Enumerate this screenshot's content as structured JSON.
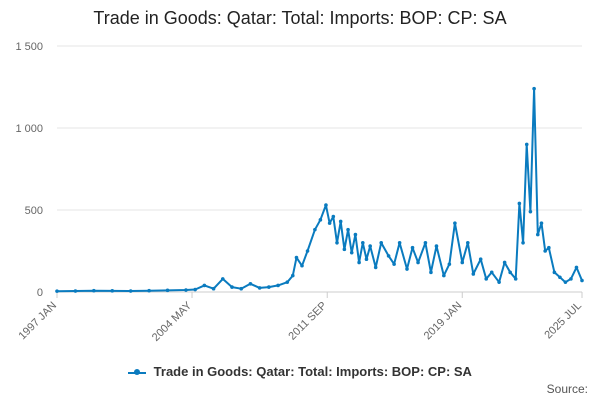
{
  "chart_data": {
    "type": "line",
    "title": "Trade in Goods: Qatar: Total: Imports: BOP: CP: SA",
    "xlabel": "",
    "ylabel": "",
    "ylim": [
      0,
      1500
    ],
    "y_ticks": [
      0,
      500,
      1000,
      1500
    ],
    "y_tick_labels": [
      "0",
      "500",
      "1 000",
      "1 500"
    ],
    "x_tick_labels": [
      "1997 JAN",
      "2004 MAY",
      "2011 SEP",
      "2019 JAN",
      "2025 JUL"
    ],
    "x_tick_positions": [
      1997.0,
      2004.33,
      2011.67,
      2019.0,
      2025.5
    ],
    "xlim": [
      1997.0,
      2025.5
    ],
    "legend_position": "bottom",
    "grid": true,
    "color": "#0a7bbf",
    "series": [
      {
        "name": "Trade in Goods: Qatar: Total: Imports: BOP: CP: SA",
        "x": [
          1997.0,
          1998.0,
          1999.0,
          2000.0,
          2001.0,
          2002.0,
          2003.0,
          2004.0,
          2004.5,
          2005.0,
          2005.5,
          2006.0,
          2006.5,
          2007.0,
          2007.5,
          2008.0,
          2008.5,
          2009.0,
          2009.5,
          2009.8,
          2010.0,
          2010.3,
          2010.6,
          2011.0,
          2011.3,
          2011.6,
          2011.8,
          2012.0,
          2012.2,
          2012.4,
          2012.6,
          2012.8,
          2013.0,
          2013.2,
          2013.4,
          2013.6,
          2013.8,
          2014.0,
          2014.3,
          2014.6,
          2015.0,
          2015.3,
          2015.6,
          2016.0,
          2016.3,
          2016.6,
          2017.0,
          2017.3,
          2017.6,
          2018.0,
          2018.3,
          2018.6,
          2019.0,
          2019.3,
          2019.6,
          2020.0,
          2020.3,
          2020.6,
          2021.0,
          2021.3,
          2021.6,
          2021.9,
          2022.1,
          2022.3,
          2022.5,
          2022.7,
          2022.9,
          2023.1,
          2023.3,
          2023.5,
          2023.7,
          2024.0,
          2024.3,
          2024.6,
          2024.9,
          2025.2,
          2025.5
        ],
        "values": [
          5,
          6,
          8,
          7,
          6,
          8,
          10,
          12,
          15,
          40,
          20,
          80,
          30,
          20,
          50,
          25,
          30,
          40,
          60,
          100,
          210,
          160,
          250,
          380,
          440,
          530,
          420,
          460,
          300,
          430,
          260,
          380,
          240,
          350,
          180,
          300,
          200,
          280,
          150,
          300,
          220,
          170,
          300,
          140,
          270,
          180,
          300,
          120,
          280,
          100,
          170,
          420,
          180,
          300,
          110,
          200,
          80,
          120,
          60,
          180,
          120,
          80,
          540,
          300,
          900,
          490,
          1240,
          350,
          420,
          250,
          270,
          120,
          90,
          60,
          80,
          150,
          70
        ]
      }
    ]
  },
  "legend": {
    "label": "Trade in Goods: Qatar: Total: Imports: BOP: CP: SA"
  },
  "footer": {
    "source_label": "Source:"
  }
}
